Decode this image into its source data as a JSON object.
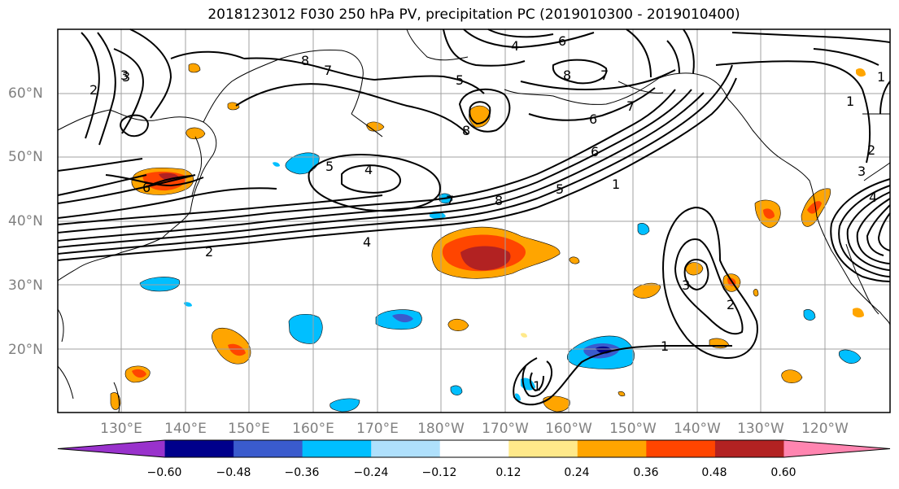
{
  "title": "2018123012 F030 250 hPa PV, precipitation PC (2019010300 - 2019010400)",
  "lat_labels": [
    "60°N",
    "50°N",
    "40°N",
    "30°N",
    "20°N"
  ],
  "lon_labels": [
    "130°E",
    "140°E",
    "150°E",
    "160°E",
    "170°E",
    "180°W",
    "170°W",
    "160°W",
    "150°W",
    "140°W",
    "130°W",
    "120°W"
  ],
  "colorbar": {
    "ticks": [
      "−0.60",
      "−0.48",
      "−0.36",
      "−0.24",
      "−0.12",
      "0.12",
      "0.24",
      "0.36",
      "0.48",
      "0.60"
    ],
    "colors": [
      "#9932cc",
      "#00008b",
      "#3a5bcd",
      "#00bfff",
      "#afe0fc",
      "#ffffff",
      "#ffe98a",
      "#ffa500",
      "#ff4500",
      "#b22222",
      "#ff85b0"
    ]
  },
  "contour_labels": [
    "1",
    "2",
    "3",
    "4",
    "5",
    "6",
    "7",
    "8",
    "2",
    "3",
    "4",
    "5",
    "6",
    "7",
    "8",
    "1",
    "2",
    "4",
    "8",
    "7",
    "7",
    "6",
    "5",
    "1",
    "8",
    "3",
    "2",
    "1",
    "3",
    "4",
    "6",
    "1"
  ],
  "colors": {
    "positive": "#ffa500",
    "strong_positive": "#ff4500",
    "very_strong_positive": "#b22222",
    "light_positive": "#ffe98a",
    "negative": "#00bfff",
    "strong_negative": "#3a5bcd",
    "light_negative": "#afe0fc"
  }
}
